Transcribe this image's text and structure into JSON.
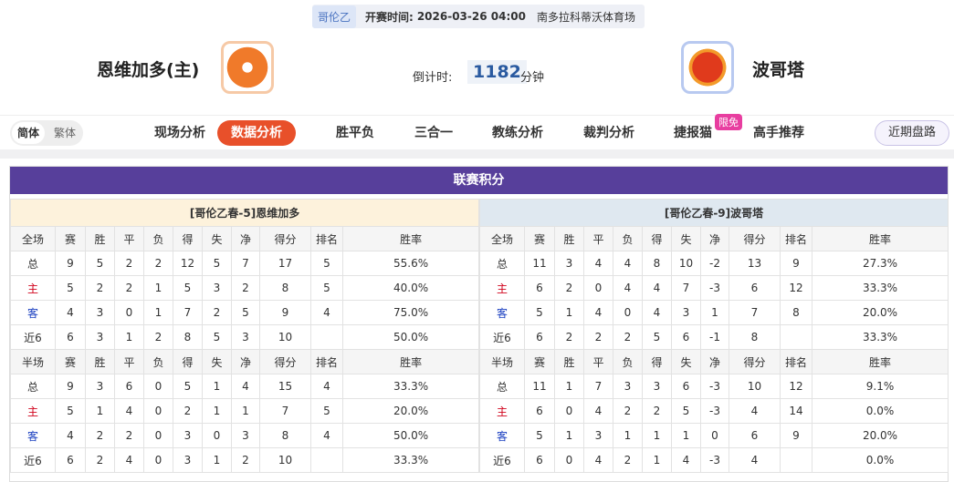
{
  "header": {
    "league": "哥伦乙",
    "kickoff_label": "开赛时间:",
    "kickoff": "2026-03-26 04:00",
    "venue": "南多拉科蒂沃体育场"
  },
  "home": {
    "name": "恩维加多(主)"
  },
  "countdown": {
    "label": "倒计时:",
    "value": 1182,
    "unit": "分钟"
  },
  "away": {
    "name": "波哥塔"
  },
  "lang": [
    "简体",
    "繁体"
  ],
  "tabs": [
    "现场分析",
    "数据分析",
    "胜平负",
    "三合一",
    "教练分析",
    "裁判分析",
    "捷报猫",
    "高手推荐"
  ],
  "badge": "限免",
  "right_button": "近期盘路",
  "section_title": "联赛积分",
  "tables": [
    {
      "title": "[哥伦乙春-5]恩维加多",
      "full": {
        "header": [
          "全场",
          "赛",
          "胜",
          "平",
          "负",
          "得",
          "失",
          "净",
          "得分",
          "排名",
          "胜率"
        ],
        "rows": [
          [
            "总",
            9,
            5,
            2,
            2,
            12,
            5,
            7,
            17,
            5,
            "55.6%"
          ],
          [
            "主",
            5,
            2,
            2,
            1,
            5,
            3,
            2,
            8,
            5,
            "40.0%"
          ],
          [
            "客",
            4,
            3,
            0,
            1,
            7,
            2,
            5,
            9,
            4,
            "75.0%"
          ],
          [
            "近6",
            6,
            3,
            1,
            2,
            8,
            5,
            3,
            10,
            null,
            "50.0%"
          ]
        ]
      },
      "half": {
        "header": [
          "半场",
          "赛",
          "胜",
          "平",
          "负",
          "得",
          "失",
          "净",
          "得分",
          "排名",
          "胜率"
        ],
        "rows": [
          [
            "总",
            9,
            3,
            6,
            0,
            5,
            1,
            4,
            15,
            4,
            "33.3%"
          ],
          [
            "主",
            5,
            1,
            4,
            0,
            2,
            1,
            1,
            7,
            5,
            "20.0%"
          ],
          [
            "客",
            4,
            2,
            2,
            0,
            3,
            0,
            3,
            8,
            4,
            "50.0%"
          ],
          [
            "近6",
            6,
            2,
            4,
            0,
            3,
            1,
            2,
            10,
            null,
            "33.3%"
          ]
        ]
      }
    },
    {
      "title": "[哥伦乙春-9]波哥塔",
      "full": {
        "header": [
          "全场",
          "赛",
          "胜",
          "平",
          "负",
          "得",
          "失",
          "净",
          "得分",
          "排名",
          "胜率"
        ],
        "rows": [
          [
            "总",
            11,
            3,
            4,
            4,
            8,
            10,
            -2,
            13,
            9,
            "27.3%"
          ],
          [
            "主",
            6,
            2,
            0,
            4,
            4,
            7,
            -3,
            6,
            12,
            "33.3%"
          ],
          [
            "客",
            5,
            1,
            4,
            0,
            4,
            3,
            1,
            7,
            8,
            "20.0%"
          ],
          [
            "近6",
            6,
            2,
            2,
            2,
            5,
            6,
            -1,
            8,
            null,
            "33.3%"
          ]
        ]
      },
      "half": {
        "header": [
          "半场",
          "赛",
          "胜",
          "平",
          "负",
          "得",
          "失",
          "净",
          "得分",
          "排名",
          "胜率"
        ],
        "rows": [
          [
            "总",
            11,
            1,
            7,
            3,
            3,
            6,
            -3,
            10,
            12,
            "9.1%"
          ],
          [
            "主",
            6,
            0,
            4,
            2,
            2,
            5,
            -3,
            4,
            14,
            "0.0%"
          ],
          [
            "客",
            5,
            1,
            3,
            1,
            1,
            1,
            0,
            6,
            9,
            "20.0%"
          ],
          [
            "近6",
            6,
            0,
            4,
            2,
            1,
            4,
            -3,
            4,
            null,
            "0.0%"
          ]
        ]
      }
    }
  ]
}
